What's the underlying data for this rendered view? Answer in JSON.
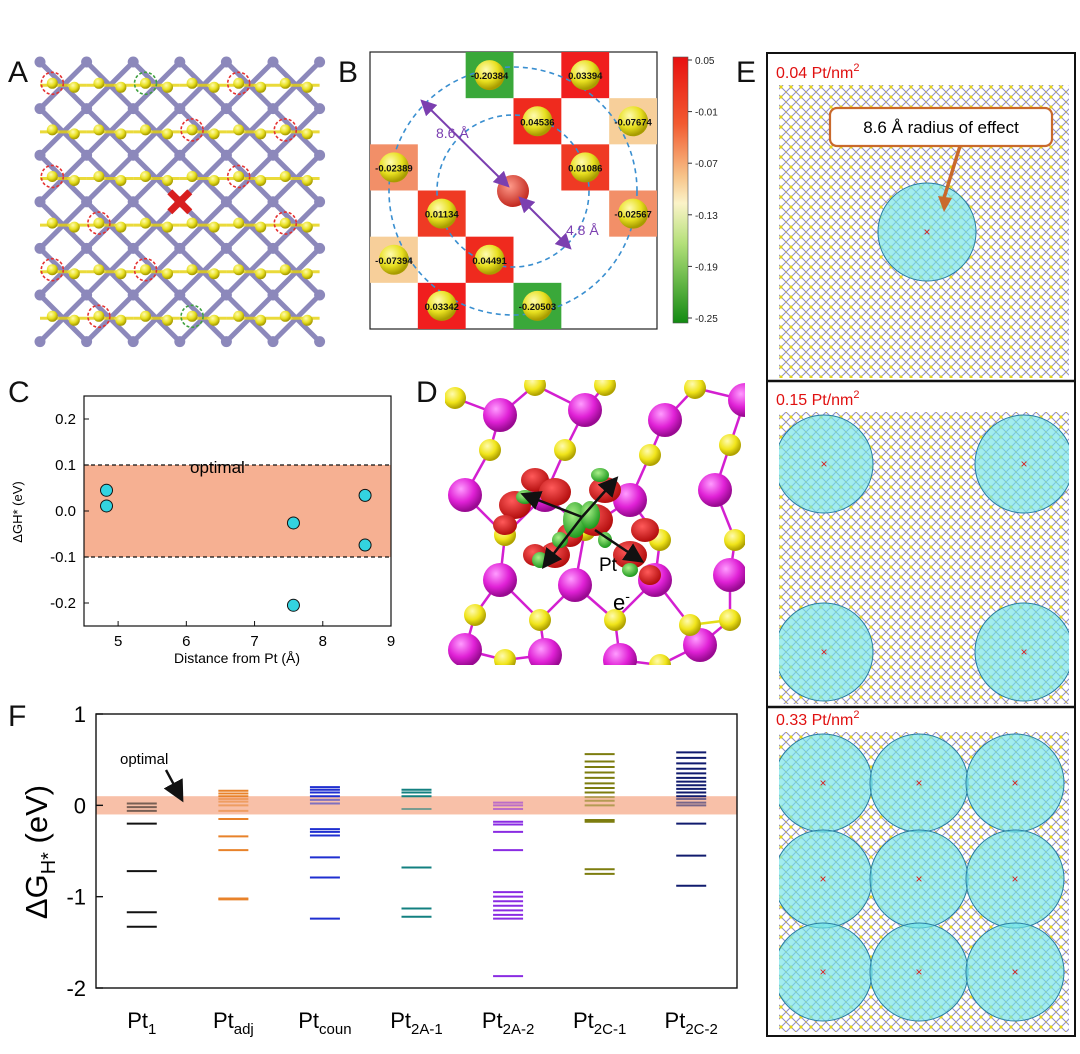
{
  "panel_labels": {
    "a": "A",
    "b": "B",
    "c": "C",
    "d": "D",
    "e": "E",
    "f": "F"
  },
  "colors": {
    "mo": "#8c88bb",
    "s": "#e6d20a",
    "pt": "#d81e1e",
    "red_ring": "#e53030",
    "green_ring": "#3fa03f",
    "optimal_band": "#f6b092",
    "marker": "#33d3e0",
    "circle_fill": "#6fe3e8",
    "circle_stroke": "#2b7fa3",
    "callout": "#c9692c",
    "density_label": "#e01010"
  },
  "panel_b": {
    "cells": [
      {
        "label": "-0.20384",
        "color": "#3aa83a"
      },
      {
        "label": "0.03394",
        "color": "#f01e1e"
      },
      {
        "label": "0.04536",
        "color": "#ef2a1e"
      },
      {
        "label": "-0.07674",
        "color": "#f7cf9a"
      },
      {
        "label": "-0.02389",
        "color": "#f28f68"
      },
      {
        "label": "0.01086",
        "color": "#ef3a24"
      },
      {
        "label": "0.01134",
        "color": "#ef3a24"
      },
      {
        "label": "-0.02567",
        "color": "#f28f68"
      },
      {
        "label": "-0.07394",
        "color": "#f7cf9a"
      },
      {
        "label": "0.04491",
        "color": "#ef2a1e"
      },
      {
        "label": "0.03342",
        "color": "#f01e1e"
      },
      {
        "label": "-0.20503",
        "color": "#3aa83a"
      }
    ],
    "outer_radius_label": "8.6 Å",
    "inner_radius_label": "4.8 Å",
    "colorbar_ticks": [
      "0.05",
      "-0.01",
      "-0.07",
      "-0.13",
      "-0.19",
      "-0.25"
    ]
  },
  "chart_data": [
    {
      "type": "scatter",
      "panel": "C",
      "xlabel": "Distance from Pt (Å)",
      "ylabel": "ΔGH* (eV)",
      "xlim": [
        4.5,
        9
      ],
      "ylim": [
        -0.25,
        0.25
      ],
      "xticks": [
        "5",
        "6",
        "7",
        "8",
        "9"
      ],
      "yticks": [
        "0.2",
        "0.1",
        "0.0",
        "-0.1",
        "-0.2"
      ],
      "optimal_band": [
        -0.1,
        0.1
      ],
      "band_label": "optimal",
      "points": [
        {
          "x": 4.83,
          "y": 0.045
        },
        {
          "x": 4.83,
          "y": 0.011
        },
        {
          "x": 7.57,
          "y": -0.026
        },
        {
          "x": 7.57,
          "y": -0.205
        },
        {
          "x": 8.62,
          "y": 0.034
        },
        {
          "x": 8.62,
          "y": -0.074
        }
      ]
    },
    {
      "type": "level_diagram",
      "panel": "F",
      "ylabel": "ΔGH* (eV)",
      "ylim": [
        -2,
        1
      ],
      "yticks": [
        "1",
        "0",
        "-1",
        "-2"
      ],
      "optimal_band": [
        -0.1,
        0.1
      ],
      "band_label": "optimal",
      "categories": [
        {
          "label": "Pt",
          "sub": "1",
          "color": "#111111",
          "levels": [
            0.02,
            -0.02,
            -0.06,
            -0.2,
            -0.72,
            -1.17,
            -1.33
          ]
        },
        {
          "label": "Pt",
          "sub": "adj",
          "color": "#e8822a",
          "levels": [
            0.16,
            0.13,
            0.1,
            0.07,
            0.04,
            0.0,
            -0.06,
            -0.15,
            -0.34,
            -0.49,
            -1.02,
            -1.03
          ]
        },
        {
          "label": "Pt",
          "sub": "coun",
          "color": "#1f2fd0",
          "levels": [
            0.2,
            0.17,
            0.14,
            0.1,
            0.06,
            0.02,
            -0.26,
            -0.29,
            -0.33,
            -0.57,
            -0.79,
            -1.24
          ]
        },
        {
          "label": "Pt",
          "sub": "2A-1",
          "color": "#138080",
          "levels": [
            0.17,
            0.14,
            0.1,
            -0.04,
            -0.68,
            -1.13,
            -1.22
          ]
        },
        {
          "label": "Pt",
          "sub": "2A-2",
          "color": "#8a2be2",
          "levels": [
            0.03,
            0.0,
            -0.04,
            -0.18,
            -0.21,
            -0.29,
            -0.49,
            -0.95,
            -1.0,
            -1.05,
            -1.1,
            -1.15,
            -1.2,
            -1.24,
            -1.87
          ]
        },
        {
          "label": "Pt",
          "sub": "2C-1",
          "color": "#7d7d0f",
          "levels": [
            0.56,
            0.48,
            0.42,
            0.36,
            0.3,
            0.24,
            0.19,
            0.14,
            0.09,
            0.05,
            0.0,
            -0.16,
            -0.18,
            -0.7,
            -0.75
          ]
        },
        {
          "label": "Pt",
          "sub": "2C-2",
          "color": "#101b6e",
          "levels": [
            0.58,
            0.52,
            0.46,
            0.4,
            0.35,
            0.3,
            0.26,
            0.22,
            0.18,
            0.14,
            0.1,
            0.07,
            0.03,
            0.0,
            -0.2,
            -0.55,
            -0.88
          ]
        }
      ]
    }
  ],
  "panel_d": {
    "pt_label": "Pt",
    "electron_label": "e",
    "electron_sup": "-"
  },
  "panel_e": {
    "callout": "8.6 Å radius of effect",
    "densities": [
      {
        "value": "0.04 Pt/nm",
        "sup": "2"
      },
      {
        "value": "0.15 Pt/nm",
        "sup": "2"
      },
      {
        "value": "0.33 Pt/nm",
        "sup": "2"
      }
    ]
  }
}
